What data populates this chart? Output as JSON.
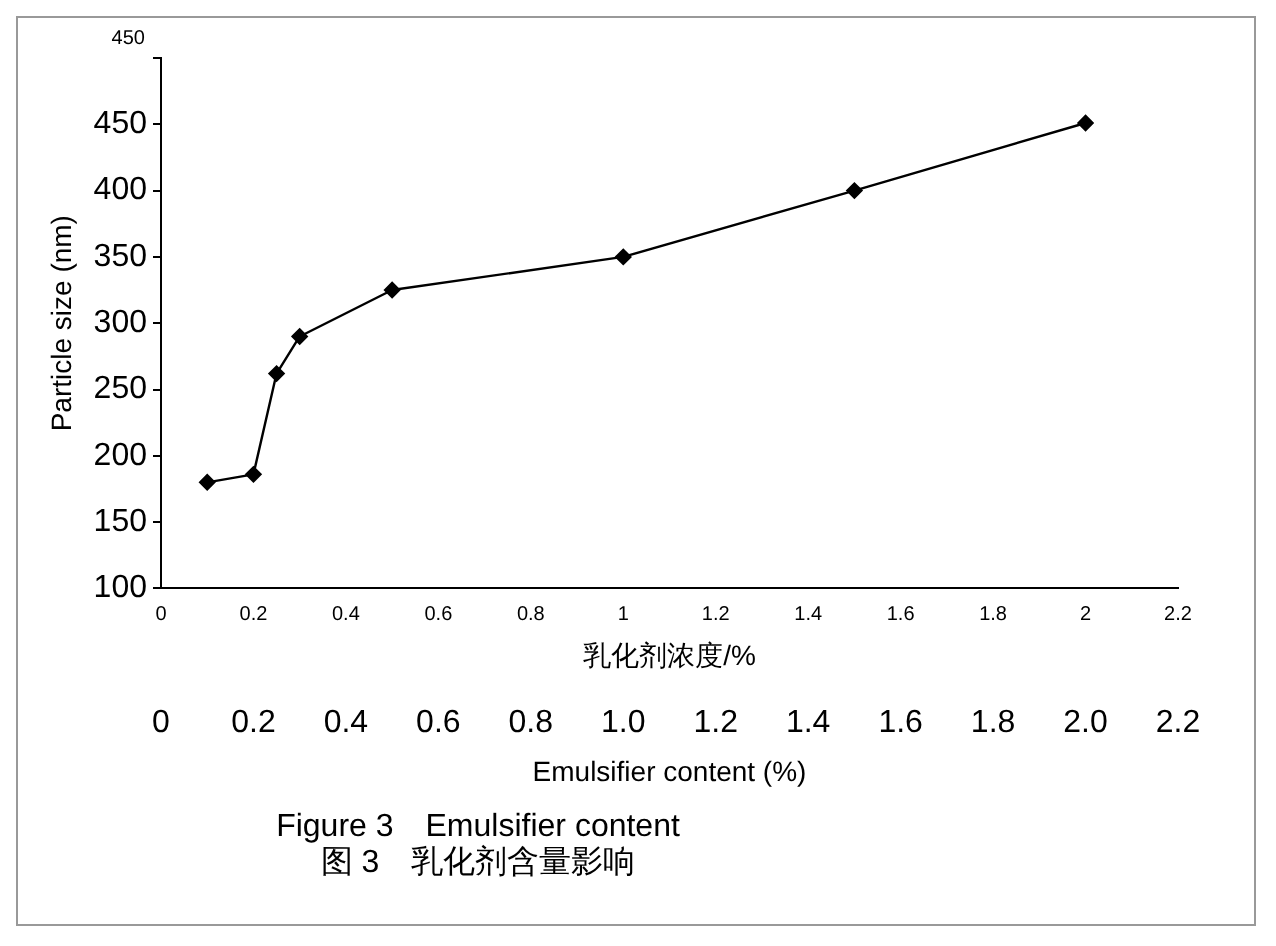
{
  "chart_data": {
    "type": "line",
    "title": "Figure 3　Emulsifier content",
    "subtitle": "图 3　乳化剂含量影响",
    "xlabel": "Emulsifier content (%)",
    "x2label": "乳化剂浓度/%",
    "annotations": [
      "450"
    ],
    "ylabel": "Particle size (nm)",
    "x": [
      0.1,
      0.2,
      0.25,
      0.3,
      0.5,
      1,
      1.5,
      2
    ],
    "series": [
      {
        "color": "#000000",
        "values": [
          180,
          186,
          262,
          290,
          325,
          350,
          400,
          451
        ]
      }
    ],
    "x2lim": [
      0,
      2.2
    ],
    "x2ticks": [
      0,
      0.2,
      0.4,
      0.6,
      0.8,
      1,
      1.2,
      1.4,
      1.6,
      1.8,
      2,
      2.2
    ],
    "xlim": [
      0,
      2.2
    ],
    "xticks": [
      0,
      0.2,
      0.4,
      0.6,
      0.8,
      {
        "value": 1,
        "label": "1.0"
      },
      1.2,
      1.4,
      1.6,
      1.8,
      {
        "value": 2,
        "label": "2.0"
      },
      2.2
    ],
    "ylim": [
      100,
      500
    ],
    "yticks": [
      100,
      150,
      200,
      250,
      300,
      350,
      400,
      450,
      {
        "value": 500,
        "label": null
      }
    ],
    "marker": "diamond",
    "line_style": "solid",
    "grid": false,
    "legend": false
  }
}
